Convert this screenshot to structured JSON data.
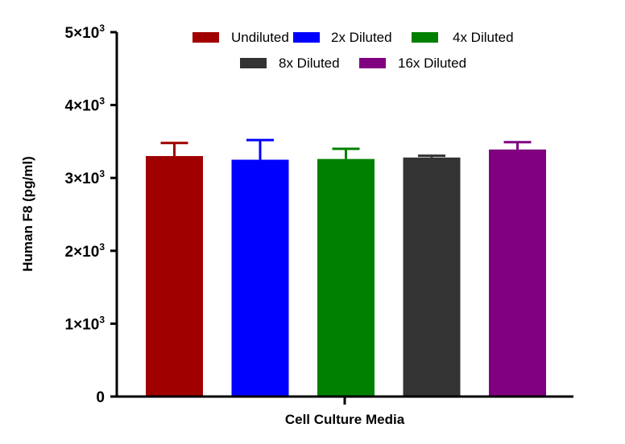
{
  "chart_data": {
    "type": "bar",
    "title": "",
    "xlabel": "Cell Culture Media",
    "ylabel": "Human F8 (pg/ml)",
    "ylim": [
      0,
      5000
    ],
    "yticks": [
      0,
      1000,
      2000,
      3000,
      4000,
      5000
    ],
    "ytick_labels": [
      {
        "base": "0",
        "exp": ""
      },
      {
        "base": "1×10",
        "exp": "3"
      },
      {
        "base": "2×10",
        "exp": "3"
      },
      {
        "base": "3×10",
        "exp": "3"
      },
      {
        "base": "4×10",
        "exp": "3"
      },
      {
        "base": "5×10",
        "exp": "3"
      }
    ],
    "legend_position": "top",
    "grid": false,
    "series": [
      {
        "name": "Undiluted",
        "value": 3300,
        "error": 180,
        "color": "#a00000"
      },
      {
        "name": "2x Diluted",
        "value": 3250,
        "error": 270,
        "color": "#0000ff"
      },
      {
        "name": "4x Diluted",
        "value": 3260,
        "error": 140,
        "color": "#008000"
      },
      {
        "name": "8x Diluted",
        "value": 3280,
        "error": 25,
        "color": "#333333"
      },
      {
        "name": "16x Diluted",
        "value": 3390,
        "error": 100,
        "color": "#800080"
      }
    ]
  }
}
